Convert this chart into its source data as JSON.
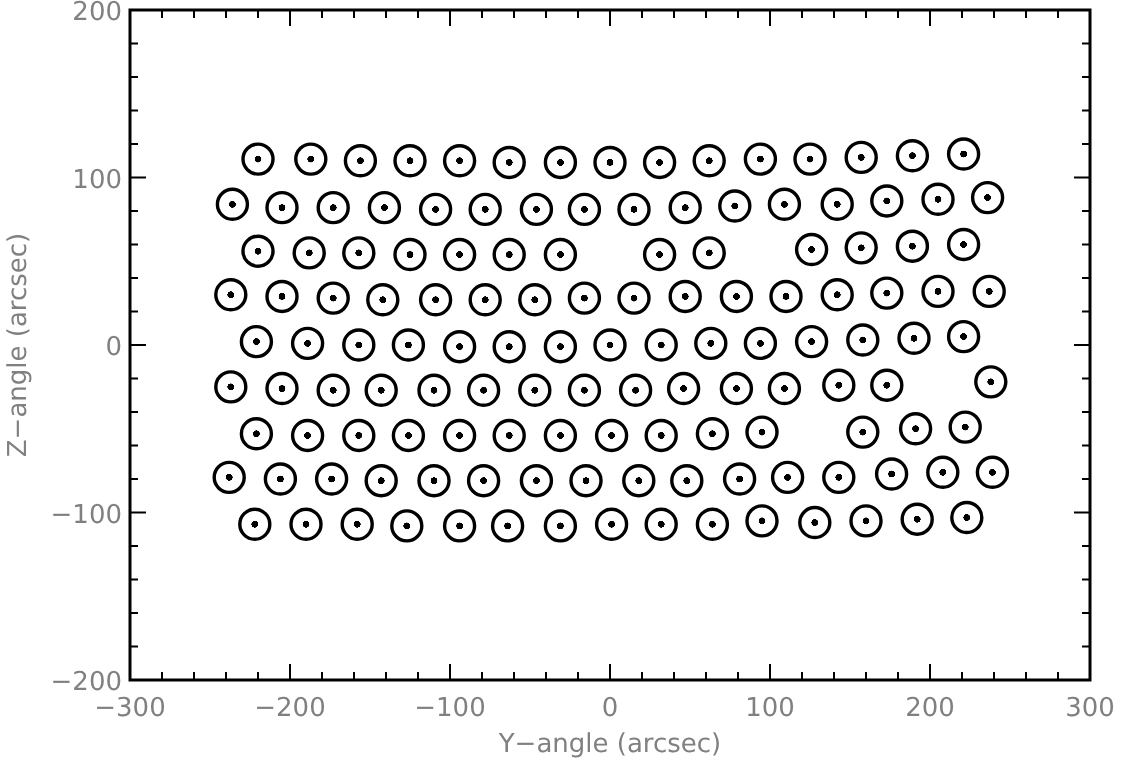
{
  "chart_data": {
    "type": "scatter",
    "xlabel": "Y−angle (arcsec)",
    "ylabel": "Z−angle (arcsec)",
    "marker": "circle",
    "xlim": [
      -300,
      300
    ],
    "ylim": [
      -200,
      200
    ],
    "xticks": [
      -300,
      {
        "value": -280,
        "label": null
      },
      {
        "value": -260,
        "label": null
      },
      {
        "value": -240,
        "label": null
      },
      {
        "value": -220,
        "label": null
      },
      -200,
      {
        "value": -180,
        "label": null
      },
      {
        "value": -160,
        "label": null
      },
      {
        "value": -140,
        "label": null
      },
      {
        "value": -120,
        "label": null
      },
      -100,
      {
        "value": -80,
        "label": null
      },
      {
        "value": -60,
        "label": null
      },
      {
        "value": -40,
        "label": null
      },
      {
        "value": -20,
        "label": null
      },
      0,
      {
        "value": 20,
        "label": null
      },
      {
        "value": 40,
        "label": null
      },
      {
        "value": 60,
        "label": null
      },
      {
        "value": 80,
        "label": null
      },
      100,
      {
        "value": 120,
        "label": null
      },
      {
        "value": 140,
        "label": null
      },
      {
        "value": 160,
        "label": null
      },
      {
        "value": 180,
        "label": null
      },
      200,
      {
        "value": 220,
        "label": null
      },
      {
        "value": 240,
        "label": null
      },
      {
        "value": 260,
        "label": null
      },
      {
        "value": 280,
        "label": null
      },
      300
    ],
    "yticks": [
      -200,
      {
        "value": -180,
        "label": null
      },
      {
        "value": -160,
        "label": null
      },
      {
        "value": -140,
        "label": null
      },
      {
        "value": -120,
        "label": null
      },
      -100,
      {
        "value": -80,
        "label": null
      },
      {
        "value": -60,
        "label": null
      },
      {
        "value": -40,
        "label": null
      },
      {
        "value": -20,
        "label": null
      },
      0,
      {
        "value": 20,
        "label": null
      },
      {
        "value": 40,
        "label": null
      },
      {
        "value": 60,
        "label": null
      },
      {
        "value": 80,
        "label": null
      },
      100,
      {
        "value": 120,
        "label": null
      },
      {
        "value": 140,
        "label": null
      },
      {
        "value": 160,
        "label": null
      },
      {
        "value": 180,
        "label": null
      },
      200
    ],
    "series": [
      {
        "color": "#000000",
        "x": [
          -220,
          -187,
          -156,
          -125,
          -94,
          -63,
          -31,
          0,
          31,
          62,
          94,
          125,
          157,
          189,
          221,
          -236,
          -205,
          -173,
          -141,
          -109,
          -78,
          -46,
          -16,
          15,
          47,
          78,
          109,
          142,
          173,
          205,
          236,
          -220,
          -188,
          -157,
          -125,
          -94,
          -63,
          -31,
          31,
          62,
          126,
          157,
          189,
          221,
          -237,
          -205,
          -173,
          -142,
          -109,
          -78,
          -47,
          -16,
          15,
          47,
          79,
          110,
          142,
          173,
          205,
          237,
          -221,
          -189,
          -157,
          -126,
          -94,
          -63,
          -31,
          0,
          32,
          63,
          94,
          126,
          158,
          190,
          221,
          -237,
          -205,
          -173,
          -143,
          -110,
          -79,
          -47,
          -16,
          16,
          46,
          79,
          109,
          143,
          173,
          238,
          -221,
          -189,
          -157,
          -126,
          -94,
          -63,
          -31,
          1,
          32,
          64,
          95,
          158,
          191,
          222,
          -238,
          -206,
          -174,
          -143,
          -110,
          -79,
          -46,
          -15,
          18,
          48,
          81,
          111,
          143,
          176,
          208,
          239,
          -222,
          -190,
          -158,
          -127,
          -94,
          -64,
          -31,
          1,
          32,
          64,
          95,
          128,
          160,
          192,
          223
        ],
        "values": [
          111,
          111,
          110,
          110,
          110,
          109,
          109,
          109,
          109,
          110,
          111,
          111,
          112,
          113,
          114,
          84,
          82,
          82,
          82,
          81,
          81,
          81,
          81,
          81,
          82,
          83,
          84,
          84,
          86,
          87,
          88,
          56,
          55,
          55,
          54,
          54,
          54,
          54,
          54,
          55,
          57,
          58,
          59,
          60,
          30,
          29,
          28,
          27,
          27,
          27,
          27,
          28,
          28,
          29,
          29,
          29,
          30,
          31,
          32,
          32,
          2,
          1,
          0,
          0,
          -1,
          -1,
          -1,
          0,
          0,
          1,
          1,
          2,
          3,
          4,
          5,
          -25,
          -26,
          -27,
          -27,
          -27,
          -27,
          -27,
          -27,
          -27,
          -26,
          -26,
          -26,
          -24,
          -24,
          -22,
          -53,
          -54,
          -54,
          -54,
          -54,
          -54,
          -54,
          -54,
          -54,
          -53,
          -52,
          -52,
          -50,
          -49,
          -79,
          -80,
          -80,
          -81,
          -81,
          -81,
          -81,
          -81,
          -81,
          -81,
          -80,
          -79,
          -79,
          -77,
          -76,
          -76,
          -107,
          -107,
          -107,
          -108,
          -108,
          -108,
          -108,
          -107,
          -107,
          -107,
          -105,
          -106,
          -105,
          -104,
          -103
        ]
      }
    ]
  }
}
